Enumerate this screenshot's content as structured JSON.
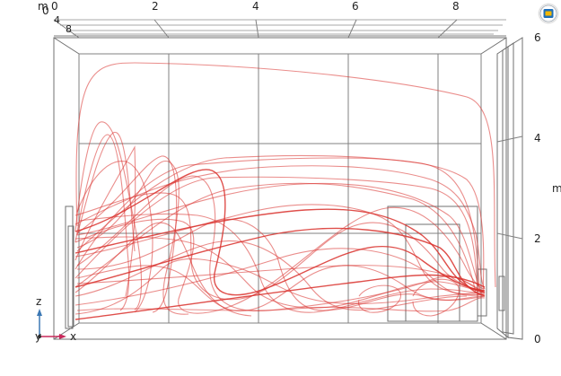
{
  "axes": {
    "unit_top": "m",
    "unit_right": "m",
    "x_ticks": [
      "0",
      "2",
      "4",
      "6",
      "8"
    ],
    "y_ticks": [
      "0",
      "4",
      "8"
    ],
    "z_ticks": [
      "6",
      "4",
      "2",
      "0"
    ],
    "triad": {
      "z": "z",
      "y": "y",
      "x": "x"
    }
  },
  "colors": {
    "streamline": "#d9302c",
    "grid": "#808080",
    "triad_z": "#3c78b4",
    "triad_x": "#c8285a"
  },
  "icons": {
    "app_badge": "app-logo-icon"
  }
}
